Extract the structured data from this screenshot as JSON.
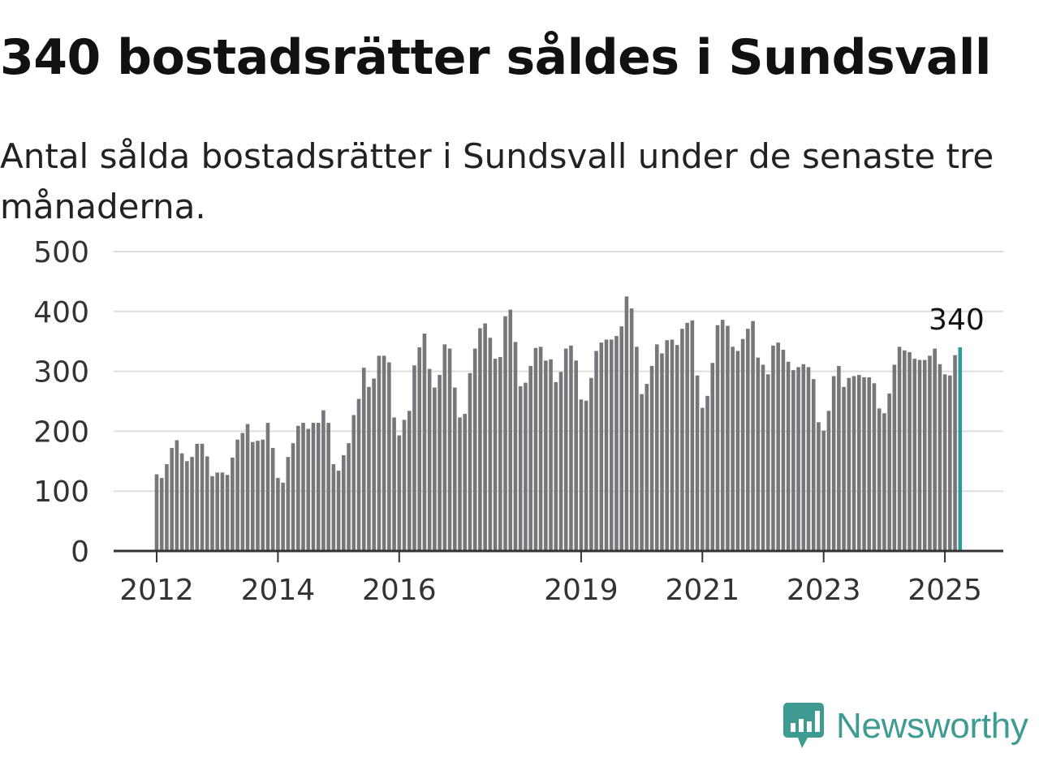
{
  "title": "340 bostadsrätter såldes i Sundsvall",
  "subtitle": "Antal sålda bostadsrätter i Sundsvall under de senaste tre månaderna.",
  "brand": {
    "name": "Newsworthy",
    "logo_icon": "bar-chart-icon"
  },
  "colors": {
    "bar": "#76767b",
    "highlight": "#2a9d96",
    "grid": "#dddddd",
    "axis": "#333333",
    "brand": "#3e9b92"
  },
  "chart_data": {
    "type": "bar",
    "title": "340 bostadsrätter såldes i Sundsvall",
    "subtitle": "Antal sålda bostadsrätter i Sundsvall under de senaste tre månaderna.",
    "xlabel": "",
    "ylabel": "",
    "ylim": [
      0,
      500
    ],
    "yticks": [
      "0",
      "100",
      "200",
      "300",
      "400",
      "500"
    ],
    "xticks": [
      {
        "label": "2012",
        "index": 0
      },
      {
        "label": "2014",
        "index": 24
      },
      {
        "label": "2016",
        "index": 48
      },
      {
        "label": "2019",
        "index": 84
      },
      {
        "label": "2021",
        "index": 108
      },
      {
        "label": "2023",
        "index": 132
      },
      {
        "label": "2025",
        "index": 156
      }
    ],
    "grid": true,
    "last_value_label": "340",
    "highlight_last": true,
    "values": [
      128,
      122,
      145,
      172,
      185,
      163,
      150,
      157,
      179,
      179,
      158,
      125,
      131,
      131,
      127,
      156,
      186,
      197,
      212,
      182,
      184,
      186,
      214,
      172,
      122,
      114,
      157,
      180,
      209,
      214,
      204,
      214,
      214,
      235,
      214,
      145,
      134,
      160,
      180,
      227,
      254,
      306,
      274,
      288,
      326,
      326,
      315,
      223,
      193,
      219,
      234,
      310,
      340,
      363,
      304,
      273,
      294,
      345,
      338,
      273,
      223,
      229,
      297,
      338,
      372,
      380,
      356,
      321,
      324,
      392,
      403,
      349,
      275,
      281,
      309,
      339,
      341,
      318,
      320,
      282,
      299,
      338,
      343,
      318,
      253,
      251,
      289,
      334,
      348,
      353,
      353,
      359,
      375,
      425,
      405,
      341,
      262,
      279,
      309,
      345,
      330,
      352,
      353,
      344,
      371,
      381,
      385,
      293,
      239,
      259,
      314,
      377,
      386,
      376,
      341,
      334,
      354,
      371,
      384,
      323,
      311,
      295,
      343,
      348,
      336,
      316,
      302,
      307,
      312,
      307,
      287,
      215,
      201,
      234,
      292,
      309,
      274,
      289,
      292,
      294,
      290,
      290,
      280,
      238,
      230,
      263,
      311,
      341,
      335,
      332,
      321,
      319,
      319,
      326,
      338,
      312,
      295,
      293,
      327,
      340
    ]
  }
}
